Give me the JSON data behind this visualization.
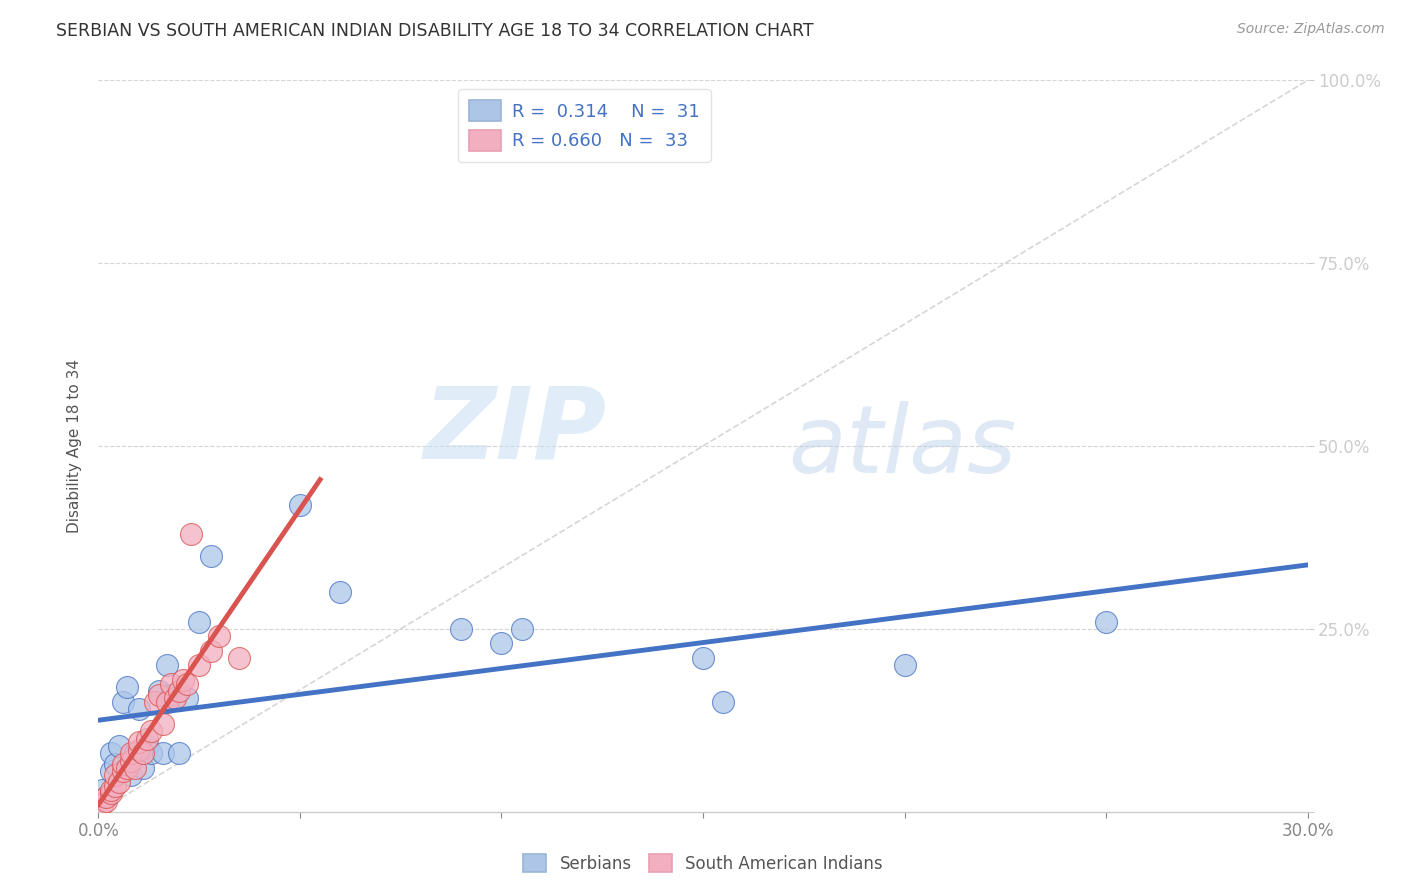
{
  "title": "SERBIAN VS SOUTH AMERICAN INDIAN DISABILITY AGE 18 TO 34 CORRELATION CHART",
  "source": "Source: ZipAtlas.com",
  "ylabel": "Disability Age 18 to 34",
  "xlim": [
    0.0,
    0.3
  ],
  "ylim": [
    0.0,
    1.0
  ],
  "xticks": [
    0.0,
    0.05,
    0.1,
    0.15,
    0.2,
    0.25,
    0.3
  ],
  "xtick_labels": [
    "0.0%",
    "",
    "",
    "",
    "",
    "",
    "30.0%"
  ],
  "ytick_labels_right": [
    "",
    "25.0%",
    "50.0%",
    "75.0%",
    "100.0%"
  ],
  "yticks": [
    0.0,
    0.25,
    0.5,
    0.75,
    1.0
  ],
  "color_serbian": "#adc6e8",
  "color_sai": "#f2afc0",
  "color_line_serbian": "#4472c4",
  "color_line_sai": "#d9534f",
  "color_diag": "#cccccc",
  "background_color": "#ffffff",
  "serbian_x": [
    0.001,
    0.002,
    0.003,
    0.003,
    0.004,
    0.005,
    0.006,
    0.007,
    0.008,
    0.009,
    0.01,
    0.011,
    0.012,
    0.013,
    0.015,
    0.016,
    0.017,
    0.018,
    0.02,
    0.022,
    0.025,
    0.028,
    0.05,
    0.06,
    0.09,
    0.1,
    0.105,
    0.15,
    0.155,
    0.2,
    0.25
  ],
  "serbian_y": [
    0.03,
    0.02,
    0.055,
    0.08,
    0.065,
    0.09,
    0.15,
    0.17,
    0.05,
    0.08,
    0.14,
    0.06,
    0.09,
    0.08,
    0.165,
    0.08,
    0.2,
    0.16,
    0.08,
    0.155,
    0.26,
    0.35,
    0.42,
    0.3,
    0.25,
    0.23,
    0.25,
    0.21,
    0.15,
    0.2,
    0.26
  ],
  "sai_x": [
    0.001,
    0.002,
    0.002,
    0.003,
    0.003,
    0.004,
    0.004,
    0.005,
    0.006,
    0.006,
    0.007,
    0.008,
    0.008,
    0.009,
    0.01,
    0.01,
    0.011,
    0.012,
    0.013,
    0.014,
    0.015,
    0.016,
    0.017,
    0.018,
    0.019,
    0.02,
    0.021,
    0.022,
    0.023,
    0.025,
    0.028,
    0.03,
    0.035
  ],
  "sai_y": [
    0.01,
    0.015,
    0.02,
    0.025,
    0.03,
    0.035,
    0.05,
    0.04,
    0.055,
    0.065,
    0.06,
    0.07,
    0.08,
    0.06,
    0.085,
    0.095,
    0.08,
    0.1,
    0.11,
    0.15,
    0.16,
    0.12,
    0.15,
    0.175,
    0.155,
    0.165,
    0.18,
    0.175,
    0.38,
    0.2,
    0.22,
    0.24,
    0.21
  ]
}
